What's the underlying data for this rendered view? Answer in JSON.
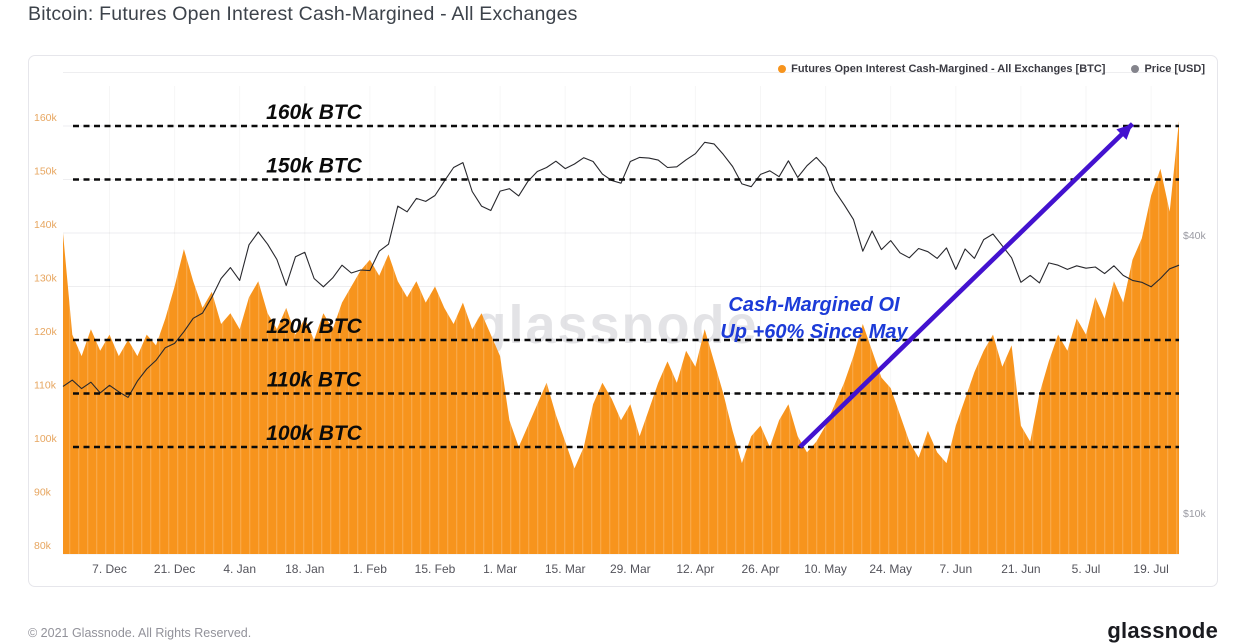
{
  "page": {
    "title": "Bitcoin: Futures Open Interest Cash-Margined - All Exchanges",
    "footer_copyright": "© 2021 Glassnode. All Rights Reserved.",
    "footer_logo": "glassnode",
    "watermark": "glassnode"
  },
  "legend": [
    {
      "label": "Futures Open Interest Cash-Margined - All Exchanges [BTC]",
      "color": "#f7941d"
    },
    {
      "label": "Price [USD]",
      "color": "#84848c"
    }
  ],
  "annotations": {
    "levels": [
      {
        "value": 160,
        "label": "160k BTC"
      },
      {
        "value": 150,
        "label": "150k BTC"
      },
      {
        "value": 120,
        "label": "120k BTC"
      },
      {
        "value": 110,
        "label": "110k BTC"
      },
      {
        "value": 100,
        "label": "100k BTC"
      }
    ],
    "level_line_color": "#0b0b0b",
    "callout": {
      "line1": "Cash-Margined OI",
      "line2": "Up +60% Since May",
      "color": "#1c3bd8"
    },
    "arrow": {
      "color": "#4312cf",
      "from_day": 158.5,
      "from_value": 100,
      "to_day": 230,
      "to_value": 160.4
    }
  },
  "chart_data": {
    "type": "area",
    "title": "Bitcoin: Futures Open Interest Cash-Margined - All Exchanges",
    "x_days": {
      "start": 0,
      "step": 2,
      "count": 121
    },
    "x_ticks": {
      "days": [
        10,
        24,
        38,
        52,
        66,
        80,
        94,
        108,
        122,
        136,
        150,
        164,
        178,
        192,
        206,
        220,
        234
      ],
      "labels": [
        "7. Dec",
        "21. Dec",
        "4. Jan",
        "18. Jan",
        "1. Feb",
        "15. Feb",
        "1. Mar",
        "15. Mar",
        "29. Mar",
        "12. Apr",
        "26. Apr",
        "10. May",
        "24. May",
        "7. Jun",
        "21. Jun",
        "5. Jul",
        "19. Jul"
      ]
    },
    "left_axis": {
      "unit": "BTC (thousands)",
      "min": 80,
      "max": 170,
      "tick_values": [
        80,
        90,
        100,
        110,
        120,
        130,
        140,
        150,
        160
      ],
      "tick_labels": [
        "80k",
        "90k",
        "100k",
        "110k",
        "120k",
        "130k",
        "140k",
        "150k",
        "160k"
      ]
    },
    "right_axis": {
      "unit": "USD (thousands)",
      "scale": "log",
      "ticks": [
        {
          "value": 40,
          "label": "$40k"
        },
        {
          "value": 10,
          "label": "$10k"
        }
      ]
    },
    "series": [
      {
        "name": "Futures Open Interest Cash-Margined - All Exchanges [BTC]",
        "type": "area",
        "axis": "left",
        "color": "#f7941d",
        "values": [
          140,
          121,
          117,
          122,
          118,
          121,
          117,
          120,
          117,
          121,
          119,
          124,
          130,
          137,
          131,
          126,
          129,
          123,
          125,
          122,
          128,
          131,
          125,
          122,
          126,
          121,
          124,
          120,
          125,
          122,
          127,
          130,
          133,
          135,
          132,
          136,
          131,
          128,
          131,
          127,
          130,
          126,
          123,
          127,
          122,
          125,
          121,
          117,
          105,
          100,
          104,
          108,
          112,
          106,
          101,
          96,
          100,
          108,
          112,
          109,
          105,
          108,
          102,
          107,
          112,
          116,
          112,
          118,
          115,
          122,
          116,
          110,
          103,
          97,
          102,
          104,
          100,
          105,
          108,
          102,
          99,
          101,
          104,
          108,
          112,
          117,
          123,
          118,
          113,
          111,
          106,
          101,
          98,
          103,
          99,
          97,
          104,
          109,
          114,
          118,
          121,
          115,
          119,
          104,
          101,
          110,
          116,
          121,
          118,
          124,
          121,
          128,
          124,
          131,
          127,
          135,
          139,
          147,
          152,
          144,
          161
        ]
      },
      {
        "name": "Price [USD]",
        "type": "line",
        "axis": "right",
        "color": "#28282d",
        "values": [
          18.8,
          19.4,
          18.6,
          19.2,
          18.2,
          18.9,
          18.3,
          17.8,
          19.3,
          20.5,
          21.4,
          22.8,
          23.3,
          24.7,
          26.4,
          27.1,
          29.3,
          32.2,
          34.0,
          31.9,
          38.1,
          40.6,
          38.2,
          35.4,
          31.1,
          35.9,
          36.7,
          32.2,
          30.9,
          32.3,
          34.4,
          33.1,
          33.6,
          33.5,
          36.9,
          38.2,
          46.2,
          44.9,
          48.0,
          47.3,
          48.7,
          52.3,
          56.0,
          57.4,
          49.7,
          46.2,
          45.2,
          49.8,
          50.4,
          48.6,
          52.3,
          54.9,
          56.0,
          57.8,
          55.7,
          57.0,
          58.8,
          57.7,
          54.2,
          52.5,
          51.8,
          57.7,
          58.9,
          58.7,
          58.1,
          56.0,
          56.2,
          58.2,
          60.0,
          63.5,
          63.0,
          59.8,
          56.3,
          51.6,
          50.9,
          54.1,
          55.1,
          53.5,
          57.9,
          53.3,
          56.5,
          58.9,
          56.0,
          49.8,
          46.5,
          43.2,
          36.9,
          40.8,
          37.2,
          38.9,
          36.6,
          35.7,
          37.4,
          36.8,
          35.6,
          37.5,
          33.7,
          37.3,
          35.6,
          39.1,
          40.2,
          37.9,
          35.7,
          31.6,
          32.7,
          31.5,
          34.8,
          34.4,
          33.7,
          34.3,
          33.9,
          34.1,
          33.0,
          34.3,
          32.7,
          31.9,
          31.6,
          30.9,
          32.2,
          33.8,
          34.4
        ]
      }
    ]
  }
}
